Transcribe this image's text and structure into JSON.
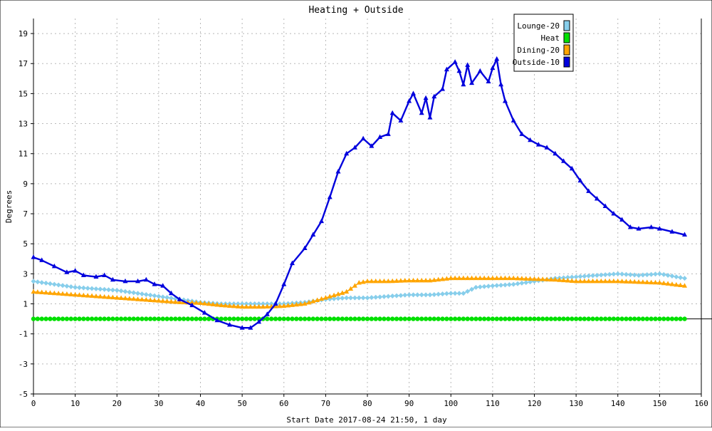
{
  "chart_data": {
    "type": "line",
    "title": "Heating + Outside",
    "xlabel": "Start Date 2017-08-24 21:50, 1 day",
    "ylabel": "Degrees",
    "xlim": [
      0,
      160
    ],
    "ylim": [
      -5,
      20
    ],
    "x_ticks": [
      0,
      10,
      20,
      30,
      40,
      50,
      60,
      70,
      80,
      90,
      100,
      110,
      120,
      130,
      140,
      150,
      160
    ],
    "y_ticks": [
      -5,
      -3,
      -1,
      1,
      3,
      5,
      7,
      9,
      11,
      13,
      15,
      17,
      19
    ],
    "grid": true,
    "legend_position": "top-right",
    "series": [
      {
        "name": "Lounge-20",
        "color": "#87ceeb",
        "marker": "diamond",
        "points": [
          [
            0,
            2.5
          ],
          [
            5,
            2.3
          ],
          [
            10,
            2.1
          ],
          [
            15,
            2.0
          ],
          [
            20,
            1.9
          ],
          [
            25,
            1.7
          ],
          [
            30,
            1.5
          ],
          [
            35,
            1.3
          ],
          [
            40,
            1.1
          ],
          [
            45,
            1.0
          ],
          [
            50,
            1.0
          ],
          [
            55,
            1.0
          ],
          [
            60,
            1.0
          ],
          [
            65,
            1.1
          ],
          [
            70,
            1.3
          ],
          [
            75,
            1.4
          ],
          [
            80,
            1.4
          ],
          [
            85,
            1.5
          ],
          [
            90,
            1.6
          ],
          [
            95,
            1.6
          ],
          [
            100,
            1.7
          ],
          [
            103,
            1.7
          ],
          [
            106,
            2.1
          ],
          [
            110,
            2.2
          ],
          [
            115,
            2.3
          ],
          [
            120,
            2.5
          ],
          [
            125,
            2.7
          ],
          [
            130,
            2.8
          ],
          [
            135,
            2.9
          ],
          [
            140,
            3.0
          ],
          [
            145,
            2.9
          ],
          [
            150,
            3.0
          ],
          [
            156,
            2.7
          ]
        ]
      },
      {
        "name": "Heat",
        "color": "#00e000",
        "marker": "circle",
        "points": [
          [
            0,
            0
          ],
          [
            156,
            0
          ]
        ]
      },
      {
        "name": "Dining-20",
        "color": "#ffa500",
        "marker": "triangle",
        "points": [
          [
            0,
            1.8
          ],
          [
            5,
            1.7
          ],
          [
            10,
            1.6
          ],
          [
            15,
            1.5
          ],
          [
            20,
            1.4
          ],
          [
            25,
            1.3
          ],
          [
            30,
            1.2
          ],
          [
            35,
            1.1
          ],
          [
            40,
            1.05
          ],
          [
            45,
            0.9
          ],
          [
            50,
            0.8
          ],
          [
            55,
            0.8
          ],
          [
            60,
            0.85
          ],
          [
            65,
            1.0
          ],
          [
            70,
            1.4
          ],
          [
            75,
            1.8
          ],
          [
            78,
            2.4
          ],
          [
            80,
            2.5
          ],
          [
            85,
            2.5
          ],
          [
            90,
            2.55
          ],
          [
            95,
            2.55
          ],
          [
            100,
            2.7
          ],
          [
            105,
            2.7
          ],
          [
            110,
            2.7
          ],
          [
            115,
            2.7
          ],
          [
            120,
            2.65
          ],
          [
            125,
            2.6
          ],
          [
            130,
            2.5
          ],
          [
            140,
            2.5
          ],
          [
            145,
            2.45
          ],
          [
            150,
            2.4
          ],
          [
            156,
            2.2
          ]
        ]
      },
      {
        "name": "Outside-10",
        "color": "#0000dd",
        "marker": "triangle",
        "points": [
          [
            0,
            4.1
          ],
          [
            2,
            3.9
          ],
          [
            5,
            3.5
          ],
          [
            8,
            3.1
          ],
          [
            10,
            3.2
          ],
          [
            12,
            2.9
          ],
          [
            15,
            2.8
          ],
          [
            17,
            2.9
          ],
          [
            19,
            2.6
          ],
          [
            22,
            2.5
          ],
          [
            25,
            2.5
          ],
          [
            27,
            2.6
          ],
          [
            29,
            2.3
          ],
          [
            31,
            2.2
          ],
          [
            33,
            1.7
          ],
          [
            35,
            1.3
          ],
          [
            38,
            0.9
          ],
          [
            41,
            0.4
          ],
          [
            44,
            -0.1
          ],
          [
            47,
            -0.4
          ],
          [
            50,
            -0.6
          ],
          [
            52,
            -0.6
          ],
          [
            54,
            -0.2
          ],
          [
            56,
            0.3
          ],
          [
            58,
            1.0
          ],
          [
            60,
            2.3
          ],
          [
            62,
            3.7
          ],
          [
            65,
            4.7
          ],
          [
            67,
            5.6
          ],
          [
            69,
            6.5
          ],
          [
            71,
            8.1
          ],
          [
            73,
            9.8
          ],
          [
            75,
            11.0
          ],
          [
            77,
            11.4
          ],
          [
            79,
            12.0
          ],
          [
            81,
            11.5
          ],
          [
            83,
            12.1
          ],
          [
            85,
            12.3
          ],
          [
            86,
            13.7
          ],
          [
            88,
            13.2
          ],
          [
            90,
            14.5
          ],
          [
            91,
            15.0
          ],
          [
            93,
            13.7
          ],
          [
            94,
            14.7
          ],
          [
            95,
            13.4
          ],
          [
            96,
            14.8
          ],
          [
            98,
            15.3
          ],
          [
            99,
            16.6
          ],
          [
            101,
            17.1
          ],
          [
            102,
            16.5
          ],
          [
            103,
            15.6
          ],
          [
            104,
            16.9
          ],
          [
            105,
            15.7
          ],
          [
            107,
            16.5
          ],
          [
            109,
            15.8
          ],
          [
            110,
            16.7
          ],
          [
            111,
            17.3
          ],
          [
            112,
            15.6
          ],
          [
            113,
            14.5
          ],
          [
            115,
            13.2
          ],
          [
            117,
            12.3
          ],
          [
            119,
            11.9
          ],
          [
            121,
            11.6
          ],
          [
            123,
            11.4
          ],
          [
            125,
            11.0
          ],
          [
            127,
            10.5
          ],
          [
            129,
            10.0
          ],
          [
            131,
            9.2
          ],
          [
            133,
            8.5
          ],
          [
            135,
            8.0
          ],
          [
            137,
            7.5
          ],
          [
            139,
            7.0
          ],
          [
            141,
            6.6
          ],
          [
            143,
            6.1
          ],
          [
            145,
            6.0
          ],
          [
            148,
            6.1
          ],
          [
            150,
            6.0
          ],
          [
            153,
            5.8
          ],
          [
            156,
            5.6
          ]
        ]
      }
    ]
  }
}
